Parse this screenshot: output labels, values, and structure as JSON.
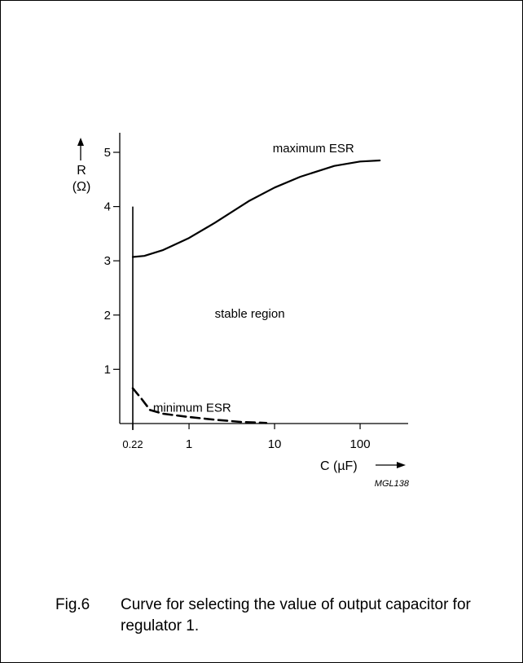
{
  "chart_data": {
    "type": "line",
    "x_scale": "log",
    "xlabel": "C (µF)",
    "ylabel_symbol": "R",
    "ylabel_unit": "(Ω)",
    "xlim": [
      0.22,
      170
    ],
    "ylim": [
      0,
      5.3
    ],
    "x_ticks": [
      {
        "value": 0.22,
        "label": "0.22"
      },
      {
        "value": 1,
        "label": "1"
      },
      {
        "value": 10,
        "label": "10"
      },
      {
        "value": 100,
        "label": "100"
      }
    ],
    "y_ticks": [
      {
        "value": 1,
        "label": "1"
      },
      {
        "value": 2,
        "label": "2"
      },
      {
        "value": 3,
        "label": "3"
      },
      {
        "value": 4,
        "label": "4"
      },
      {
        "value": 5,
        "label": "5"
      }
    ],
    "boundary": {
      "x": 0.22,
      "y_top": 4.0
    },
    "series": [
      {
        "name": "maximum ESR",
        "style": "solid",
        "x": [
          0.22,
          0.3,
          0.5,
          1,
          2,
          5,
          10,
          20,
          50,
          100,
          170
        ],
        "y": [
          3.07,
          3.09,
          3.2,
          3.42,
          3.7,
          4.1,
          4.35,
          4.55,
          4.75,
          4.83,
          4.85
        ]
      },
      {
        "name": "minimum ESR",
        "style": "dashed",
        "x": [
          0.22,
          0.28,
          0.35,
          0.5,
          1,
          2,
          4,
          8
        ],
        "y": [
          0.65,
          0.45,
          0.25,
          0.18,
          0.12,
          0.07,
          0.03,
          0.01
        ]
      }
    ],
    "annotations": [
      {
        "text": "maximum ESR",
        "x": 9.5,
        "y": 5.0
      },
      {
        "text": "stable region",
        "x": 2.0,
        "y": 1.95
      },
      {
        "text": "minimum ESR",
        "x": 0.38,
        "y": 0.22
      }
    ]
  },
  "figure_code": "MGL138",
  "caption": {
    "number": "Fig.6",
    "text": "Curve for selecting the value of output capacitor for regulator 1."
  }
}
